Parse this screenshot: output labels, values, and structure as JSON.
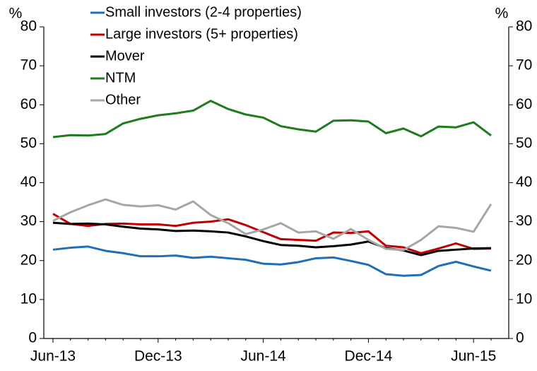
{
  "chart_data": {
    "type": "line",
    "y_label": "%",
    "y2_label": "%",
    "categories": [
      "Jun-13",
      null,
      null,
      null,
      null,
      null,
      "Dec-13",
      null,
      null,
      null,
      null,
      null,
      "Jun-14",
      null,
      null,
      null,
      null,
      null,
      "Dec-14",
      null,
      null,
      null,
      null,
      null,
      "Jun-15",
      null
    ],
    "series": [
      {
        "name": "Small investors (2-4 properties)",
        "color": "#1f6fb8",
        "values": [
          22.8,
          23.3,
          23.6,
          22.5,
          21.9,
          21.1,
          21.1,
          21.3,
          20.7,
          21.0,
          20.6,
          20.2,
          19.2,
          19.0,
          19.6,
          20.6,
          20.8,
          19.9,
          18.9,
          16.5,
          16.1,
          16.3,
          18.6,
          19.7,
          18.5,
          17.4
        ]
      },
      {
        "name": "Large investors (5+ properties)",
        "color": "#c00000",
        "values": [
          32.0,
          29.4,
          28.9,
          29.4,
          29.5,
          29.3,
          29.3,
          28.9,
          29.7,
          30.0,
          30.6,
          29.1,
          27.3,
          25.5,
          25.3,
          25.1,
          27.2,
          27.1,
          27.5,
          23.8,
          23.4,
          21.9,
          23.1,
          24.4,
          23.0,
          23.1
        ]
      },
      {
        "name": "Mover",
        "color": "#000000",
        "values": [
          29.7,
          29.4,
          29.5,
          29.3,
          28.7,
          28.2,
          28.0,
          27.6,
          27.7,
          27.5,
          27.2,
          26.2,
          25.0,
          24.0,
          23.8,
          23.4,
          23.7,
          24.1,
          24.9,
          23.2,
          22.6,
          21.4,
          22.5,
          22.8,
          23.1,
          23.2
        ]
      },
      {
        "name": "NTM",
        "color": "#1e7b1e",
        "values": [
          51.7,
          52.2,
          52.1,
          52.5,
          55.2,
          56.4,
          57.3,
          57.8,
          58.5,
          61.0,
          58.9,
          57.5,
          56.7,
          54.5,
          53.7,
          53.1,
          55.9,
          56.0,
          55.7,
          52.7,
          53.9,
          51.9,
          54.4,
          54.2,
          55.5,
          52.1
        ]
      },
      {
        "name": "Other",
        "color": "#a6a6a6",
        "values": [
          30.2,
          32.4,
          34.2,
          35.7,
          34.3,
          33.9,
          34.2,
          33.1,
          35.2,
          31.7,
          29.6,
          26.8,
          28.0,
          29.6,
          27.2,
          27.5,
          25.6,
          28.1,
          25.3,
          23.0,
          22.7,
          25.3,
          28.8,
          28.4,
          27.4,
          34.5
        ]
      }
    ],
    "ylim": [
      0,
      80
    ],
    "yticks": [
      0,
      10,
      20,
      30,
      40,
      50,
      60,
      70,
      80
    ],
    "y2lim": [
      0,
      80
    ],
    "y2ticks": [
      0,
      10,
      20,
      30,
      40,
      50,
      60,
      70,
      80
    ],
    "legend": "upper left",
    "grid": false
  }
}
